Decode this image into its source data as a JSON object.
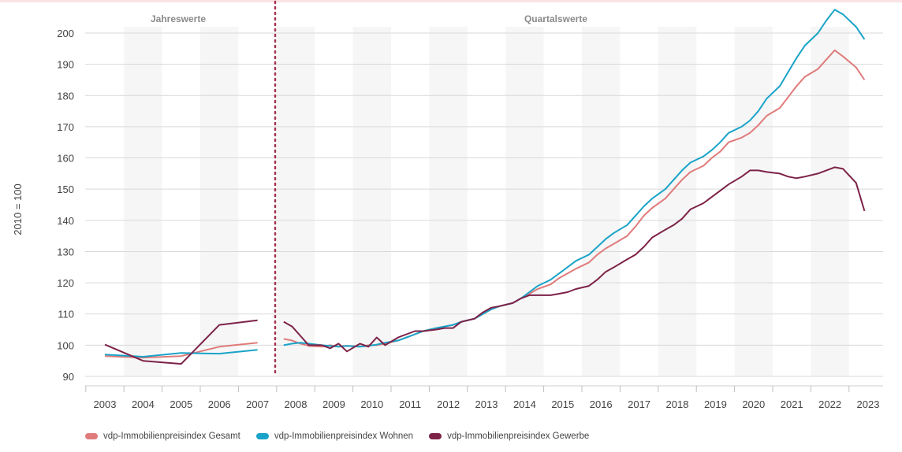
{
  "chart_data": {
    "type": "line",
    "ylabel": "2010 = 100",
    "ylim": [
      90,
      210
    ],
    "yticks": [
      90,
      100,
      110,
      120,
      130,
      140,
      150,
      160,
      170,
      180,
      190,
      200
    ],
    "year_labels": [
      "2003",
      "2004",
      "2005",
      "2006",
      "2007",
      "2008",
      "2009",
      "2010",
      "2011",
      "2012",
      "2013",
      "2014",
      "2015",
      "2016",
      "2017",
      "2018",
      "2019",
      "2020",
      "2021",
      "2022",
      "2023"
    ],
    "sections": {
      "annual": "Jahreswerte",
      "quarterly": "Quartalswerte"
    },
    "grid": true,
    "legend_position": "bottom-left",
    "series": [
      {
        "name": "vdp-Immobilienpreisindex Gesamt",
        "color": "#e07b7b",
        "annual": {
          "x": [
            2003,
            2004,
            2005,
            2006,
            2007
          ],
          "y": [
            96.5,
            96,
            96.5,
            99.5,
            100.8
          ]
        },
        "quarterly": {
          "x_start": 2008,
          "y": [
            102,
            101.5,
            100.5,
            99.8,
            99.5,
            100,
            99.5,
            99.8,
            99.5,
            100,
            100,
            100.5,
            101.5,
            102.5,
            103.5,
            104.5,
            105.5,
            106,
            106.5,
            107.5,
            108.5,
            110,
            111.5,
            112.5,
            113.5,
            115,
            116.5,
            118,
            119.5,
            121.5,
            123,
            124.5,
            126.5,
            129,
            131,
            132.5,
            135,
            138,
            141.5,
            144,
            147,
            150,
            153,
            155.5,
            157.5,
            160,
            162,
            165,
            166.5,
            168,
            170.5,
            173.5,
            176,
            179.5,
            183,
            186,
            188.5,
            191.5,
            194.5,
            192.5,
            189,
            185
          ]
        }
      },
      {
        "name": "vdp-Immobilienpreisindex Wohnen",
        "color": "#1aa3c8",
        "annual": {
          "x": [
            2003,
            2004,
            2005,
            2006,
            2007
          ],
          "y": [
            97,
            96.3,
            97.5,
            97.3,
            98.5
          ]
        },
        "quarterly": {
          "x_start": 2008,
          "y": [
            100,
            100.5,
            100.8,
            100.5,
            100,
            99.8,
            99.5,
            99.8,
            99.5,
            99.8,
            100.2,
            100.8,
            101.5,
            102.5,
            103.5,
            104.5,
            105.5,
            106,
            106.5,
            107.5,
            108.5,
            110,
            111.5,
            112.5,
            113.5,
            115,
            117,
            119,
            121,
            123,
            125,
            127,
            129,
            131.5,
            134,
            136,
            138.5,
            141.5,
            144.5,
            147,
            150,
            153,
            156,
            158.5,
            160.5,
            162.5,
            165,
            168,
            170,
            172,
            175,
            179,
            183,
            187.5,
            192,
            196,
            200,
            204,
            207.5,
            206,
            202,
            198
          ]
        }
      },
      {
        "name": "vdp-Immobilienpreisindex Gewerbe",
        "color": "#7d2248",
        "annual": {
          "x": [
            2003,
            2004,
            2005,
            2006,
            2007
          ],
          "y": [
            100.2,
            95,
            94,
            106.5,
            108
          ]
        },
        "quarterly": {
          "x_start": 2008,
          "y": [
            107.5,
            106,
            103,
            100,
            100,
            99,
            100.5,
            98,
            100.5,
            99.5,
            102.5,
            100,
            102.5,
            103.5,
            104.5,
            104.5,
            105,
            105.5,
            105.5,
            107.5,
            108.5,
            110.5,
            112,
            112.5,
            113.5,
            115,
            116,
            116,
            116,
            116.5,
            117,
            118,
            119,
            121,
            123.5,
            125,
            127.5,
            129,
            131.5,
            134.5,
            137,
            138.5,
            140.5,
            143.5,
            145.5,
            147.5,
            149.5,
            151.5,
            154,
            156,
            156,
            155.5,
            155,
            154,
            153.5,
            154,
            155,
            156,
            157,
            156.5,
            152,
            143
          ]
        }
      }
    ]
  }
}
